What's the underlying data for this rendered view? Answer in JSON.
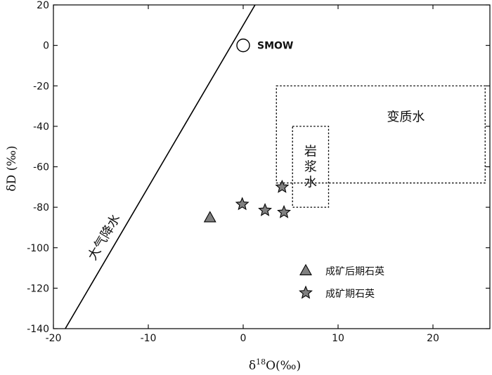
{
  "chart_data": {
    "type": "scatter",
    "xlabel": "δ18O(‰)",
    "ylabel": "δD (‰)",
    "xlim": [
      -20,
      26
    ],
    "ylim": [
      -140,
      20
    ],
    "xticks": [
      -20,
      -10,
      0,
      10,
      20
    ],
    "yticks": [
      20,
      0,
      -20,
      -40,
      -60,
      -80,
      -100,
      -120,
      -140
    ],
    "meteoric_water_line": {
      "label": "大气降水",
      "slope": 8,
      "intercept": 10
    },
    "reference_point": {
      "label": "SMOW",
      "x": 0,
      "y": 0
    },
    "regions": [
      {
        "label": "变质水",
        "x": [
          3.5,
          25.5
        ],
        "y": [
          -68,
          -20
        ],
        "border": "dotted"
      },
      {
        "label": "岩浆水",
        "x": [
          5.2,
          9.0
        ],
        "y": [
          -80,
          -40
        ],
        "border": "dotted"
      }
    ],
    "series": [
      {
        "name": "成矿后期石英",
        "marker": "triangle",
        "color": "#808080",
        "points": [
          {
            "x": -3.5,
            "y": -85
          }
        ]
      },
      {
        "name": "成矿期石英",
        "marker": "star",
        "color": "#808080",
        "points": [
          {
            "x": 4.1,
            "y": -70
          },
          {
            "x": -0.1,
            "y": -78.5
          },
          {
            "x": 2.3,
            "y": -81.5
          },
          {
            "x": 4.3,
            "y": -82.5
          }
        ]
      }
    ],
    "legend_position": "bottom-right",
    "grid": false
  }
}
